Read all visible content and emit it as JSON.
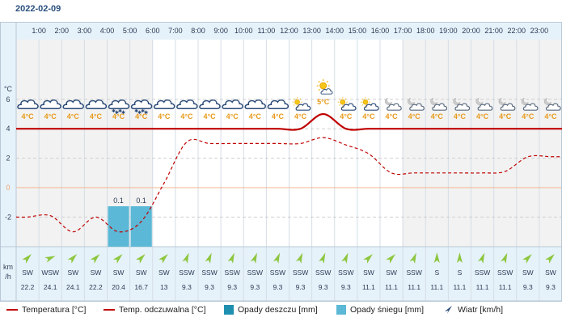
{
  "date": "2022-02-09",
  "axis": {
    "temp_unit": "°C",
    "wind_unit_top": "km",
    "wind_unit_bottom": "/h",
    "ticks": [
      "6",
      "4",
      "2",
      "0",
      "-2"
    ]
  },
  "colors": {
    "temperature": "#c00000",
    "feels_like": "#c00000",
    "rain": "#1f8fb0",
    "snow": "#5bb8d6",
    "wind_arrow": "#8dc63f"
  },
  "chart_data": {
    "type": "meteogram",
    "title": "2022-02-09",
    "hours": [
      "1:00",
      "2:00",
      "3:00",
      "4:00",
      "5:00",
      "6:00",
      "7:00",
      "8:00",
      "9:00",
      "10:00",
      "11:00",
      "12:00",
      "13:00",
      "14:00",
      "15:00",
      "16:00",
      "17:00",
      "18:00",
      "19:00",
      "20:00",
      "21:00",
      "22:00",
      "23:00"
    ],
    "temperature_labels": [
      "4°C",
      "4°C",
      "4°C",
      "4°C",
      "4°C",
      "4°C",
      "4°C",
      "4°C",
      "4°C",
      "4°C",
      "4°C",
      "4°C",
      "4°C",
      "5°C",
      "4°C",
      "4°C",
      "4°C",
      "4°C",
      "4°C",
      "4°C",
      "4°C",
      "4°C",
      "4°C",
      "4°C"
    ],
    "temperature": [
      4,
      4,
      4,
      4,
      4,
      4,
      4,
      4,
      4,
      4,
      4,
      4,
      4,
      5,
      4,
      4,
      4,
      4,
      4,
      4,
      4,
      4,
      4,
      4
    ],
    "feels_like": [
      -2,
      -1.9,
      -3,
      -2,
      -3,
      -2.3,
      0.3,
      3.1,
      3,
      3,
      3,
      3,
      3,
      3.4,
      2.9,
      2.3,
      1,
      1,
      1,
      1,
      1,
      1.1,
      2.1,
      2.1
    ],
    "rain_mm": [
      0,
      0,
      0,
      0,
      0,
      0,
      0,
      0,
      0,
      0,
      0,
      0,
      0,
      0,
      0,
      0,
      0,
      0,
      0,
      0,
      0,
      0,
      0,
      0
    ],
    "snow_mm": [
      0,
      0,
      0,
      0,
      0.1,
      0.1,
      0,
      0,
      0,
      0,
      0,
      0,
      0,
      0,
      0,
      0,
      0,
      0,
      0,
      0,
      0,
      0,
      0,
      0
    ],
    "snow_labels": [
      "",
      "",
      "",
      "",
      "0.1",
      "0.1",
      "",
      "",
      "",
      "",
      "",
      "",
      "",
      "",
      "",
      "",
      "",
      "",
      "",
      "",
      "",
      "",
      "",
      ""
    ],
    "weather_icons": [
      "cloudy",
      "cloudy",
      "cloudy",
      "cloudy",
      "snow",
      "snow",
      "cloudy",
      "cloudy",
      "cloudy",
      "cloudy",
      "cloudy",
      "cloudy",
      "partly-cloudy",
      "sunny-cloud",
      "partly-cloudy",
      "partly-cloudy",
      "night-cloudy",
      "night-cloudy",
      "night-cloudy",
      "night-cloudy",
      "night-cloudy",
      "night-cloudy",
      "night-cloudy",
      "night-cloudy"
    ],
    "wind_direction": [
      "SW",
      "WSW",
      "SW",
      "SW",
      "SW",
      "SW",
      "SW",
      "SSW",
      "SSW",
      "SSW",
      "SSW",
      "SSW",
      "SSW",
      "SSW",
      "SSW",
      "SW",
      "SW",
      "SSW",
      "S",
      "S",
      "SSW",
      "SSW",
      "SW",
      "SW"
    ],
    "wind_speed": [
      "22.2",
      "24.1",
      "24.1",
      "22.2",
      "20.4",
      "16.7",
      "13",
      "9.3",
      "9.3",
      "9.3",
      "9.3",
      "9.3",
      "9.3",
      "9.3",
      "9.3",
      "11.1",
      "11.1",
      "11.1",
      "11.1",
      "11.1",
      "11.1",
      "11.1",
      "9.3",
      "9.3"
    ],
    "ylim": [
      -4,
      7
    ],
    "grid": true
  },
  "legend": {
    "temperature": "Temperatura [°C]",
    "feels_like": "Temp. odczuwalna [°C]",
    "rain": "Opady deszczu [mm]",
    "snow": "Opady śniegu [mm]",
    "wind": "Wiatr [km/h]"
  }
}
